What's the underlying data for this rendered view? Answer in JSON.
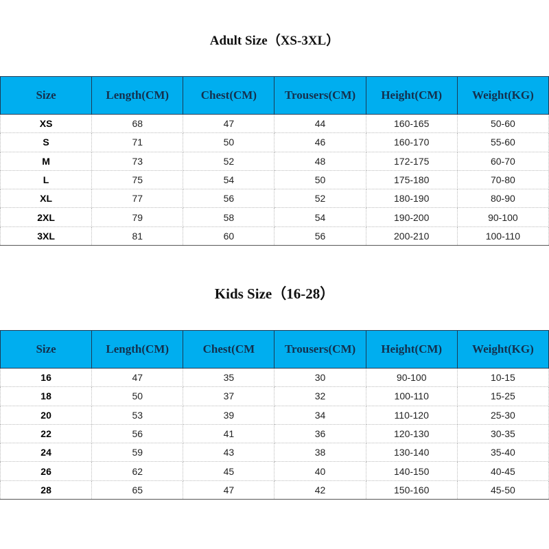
{
  "adult": {
    "title": "Adult Size（XS-3XL）",
    "headers": [
      "Size",
      "Length(CM)",
      "Chest(CM)",
      "Trousers(CM)",
      "Height(CM)",
      "Weight(KG)"
    ],
    "rows": [
      [
        "XS",
        "68",
        "47",
        "44",
        "160-165",
        "50-60"
      ],
      [
        "S",
        "71",
        "50",
        "46",
        "160-170",
        "55-60"
      ],
      [
        "M",
        "73",
        "52",
        "48",
        "172-175",
        "60-70"
      ],
      [
        "L",
        "75",
        "54",
        "50",
        "175-180",
        "70-80"
      ],
      [
        "XL",
        "77",
        "56",
        "52",
        "180-190",
        "80-90"
      ],
      [
        "2XL",
        "79",
        "58",
        "54",
        "190-200",
        "90-100"
      ],
      [
        "3XL",
        "81",
        "60",
        "56",
        "200-210",
        "100-110"
      ]
    ]
  },
  "kids": {
    "title": "Kids Size（16-28）",
    "headers": [
      "Size",
      "Length(CM)",
      "Chest(CM",
      "Trousers(CM)",
      "Height(CM)",
      "Weight(KG)"
    ],
    "rows": [
      [
        "16",
        "47",
        "35",
        "30",
        "90-100",
        "10-15"
      ],
      [
        "18",
        "50",
        "37",
        "32",
        "100-110",
        "15-25"
      ],
      [
        "20",
        "53",
        "39",
        "34",
        "110-120",
        "25-30"
      ],
      [
        "22",
        "56",
        "41",
        "36",
        "120-130",
        "30-35"
      ],
      [
        "24",
        "59",
        "43",
        "38",
        "130-140",
        "35-40"
      ],
      [
        "26",
        "62",
        "45",
        "40",
        "140-150",
        "40-45"
      ],
      [
        "28",
        "65",
        "47",
        "42",
        "150-160",
        "45-50"
      ]
    ]
  },
  "colors": {
    "header_bg": "#00aeef",
    "header_text": "#14304d"
  }
}
